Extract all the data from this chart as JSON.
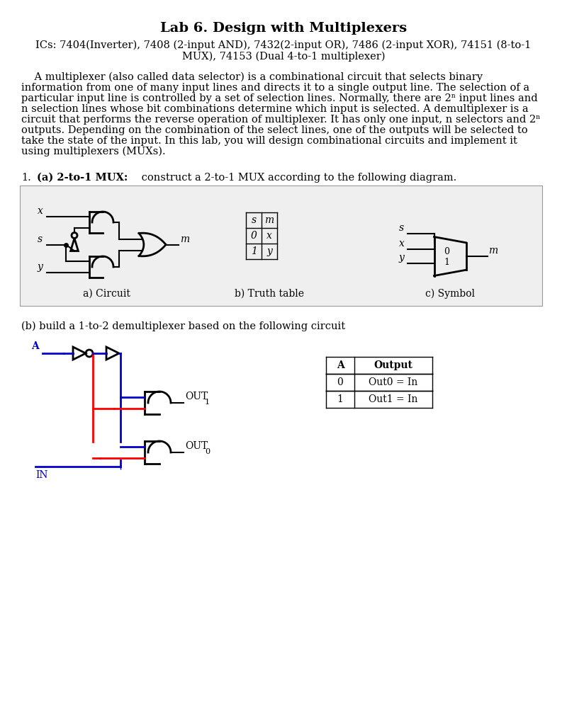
{
  "title": "Lab 6. Design with Multiplexers",
  "ics_line1": "ICs: 7404(Inverter), 7408 (2-input AND), 7432(2-input OR), 7486 (2-input XOR), 74151 (8-to-1",
  "ics_line2": "MUX), 74153 (Dual 4-to-1 multiplexer)",
  "para_indent": "    A multiplexer (also called data selector) is a combinational circuit that selects binary",
  "para_lines": [
    "information from one of many input lines and directs it to a single output line. The selection of a",
    "particular input line is controlled by a set of selection lines. Normally, there are 2ⁿ input lines and",
    "n selection lines whose bit combinations determine which input is selected. A demultiplexer is a",
    "circuit that performs the reverse operation of multiplexer. It has only one input, n selectors and 2ⁿ",
    "outputs. Depending on the combination of the select lines, one of the outputs will be selected to",
    "take the state of the input. In this lab, you will design combinational circuits and implement it",
    "using multiplexers (MUXs)."
  ],
  "q1_text": " construct a 2-to-1 MUX according to the following diagram.",
  "caption_a": "a) Circuit",
  "caption_b": "b) Truth table",
  "caption_c": "c) Symbol",
  "q1b_text": "(b) build a 1-to-2 demultiplexer based on the following circuit",
  "table_headers": [
    "A",
    "Output"
  ],
  "table_rows": [
    [
      "0",
      "Out0 = In"
    ],
    [
      "1",
      "Out1 = In"
    ]
  ],
  "bg_color": "#ffffff",
  "box_bg": "#f0f0f0",
  "text_color": "#000000",
  "font_size_title": 14,
  "font_size_body": 10.5
}
